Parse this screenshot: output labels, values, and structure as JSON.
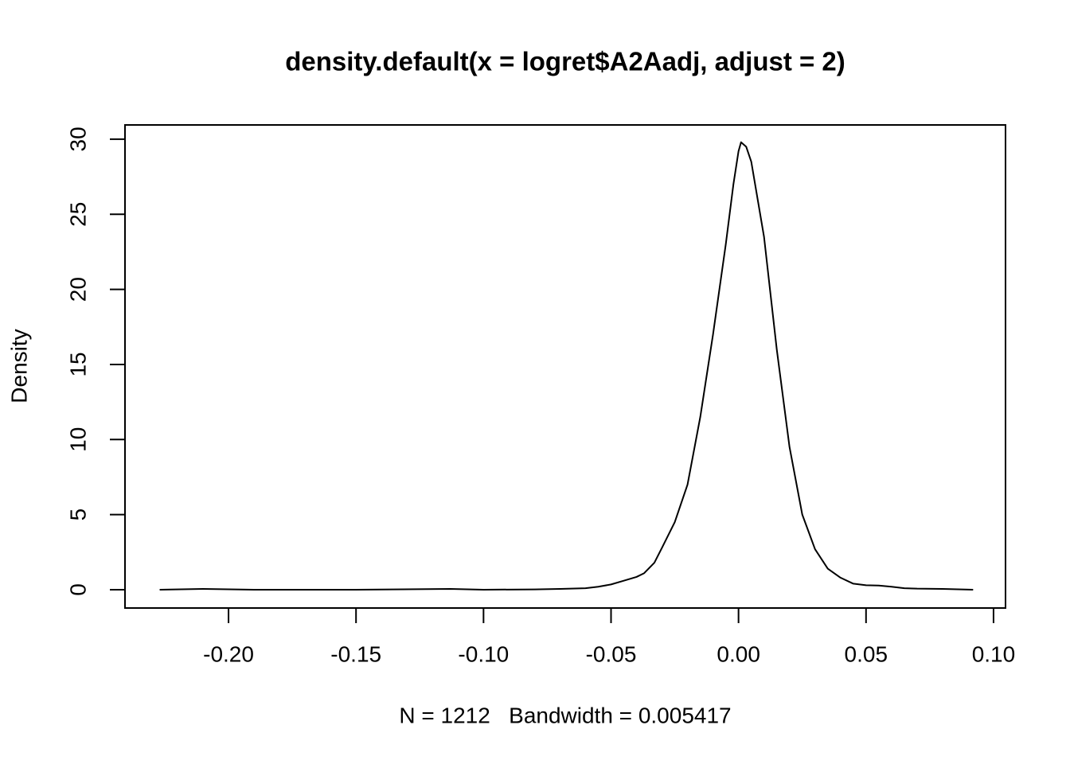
{
  "chart_data": {
    "type": "line",
    "title": "density.default(x = logret$A2Aadj, adjust = 2)",
    "x_label": "N = 1212   Bandwidth = 0.005417",
    "y_label": "Density",
    "color": "#000000",
    "x": [
      -0.227,
      -0.21,
      -0.19,
      -0.15,
      -0.113,
      -0.1,
      -0.08,
      -0.07,
      -0.06,
      -0.055,
      -0.05,
      -0.045,
      -0.04,
      -0.037,
      -0.033,
      -0.03,
      -0.025,
      -0.02,
      -0.015,
      -0.01,
      -0.005,
      -0.002,
      0,
      0.001,
      0.003,
      0.005,
      0.01,
      0.015,
      0.02,
      0.025,
      0.03,
      0.035,
      0.04,
      0.045,
      0.05,
      0.055,
      0.06,
      0.065,
      0.07,
      0.08,
      0.092
    ],
    "values": [
      0,
      0.05,
      0,
      0,
      0.05,
      0,
      0.02,
      0.05,
      0.1,
      0.2,
      0.35,
      0.6,
      0.85,
      1.1,
      1.8,
      2.8,
      4.5,
      7.0,
      11.5,
      17,
      23,
      27,
      29.2,
      29.8,
      29.5,
      28.5,
      23.5,
      16,
      9.5,
      5,
      2.7,
      1.4,
      0.8,
      0.4,
      0.3,
      0.28,
      0.2,
      0.1,
      0.07,
      0.05,
      0
    ],
    "xlim": [
      -0.2406,
      0.1047
    ],
    "ylim": [
      -1.22,
      30.95
    ],
    "xticks": [
      {
        "value": -0.2,
        "label": "-0.20"
      },
      {
        "value": -0.15,
        "label": "-0.15"
      },
      {
        "value": -0.1,
        "label": "-0.10"
      },
      {
        "value": -0.05,
        "label": "-0.05"
      },
      {
        "value": 0,
        "label": "0.00"
      },
      {
        "value": 0.05,
        "label": "0.05"
      },
      {
        "value": 0.1,
        "label": "0.10"
      }
    ],
    "yticks": [
      0,
      5,
      10,
      15,
      20,
      25,
      30
    ]
  }
}
